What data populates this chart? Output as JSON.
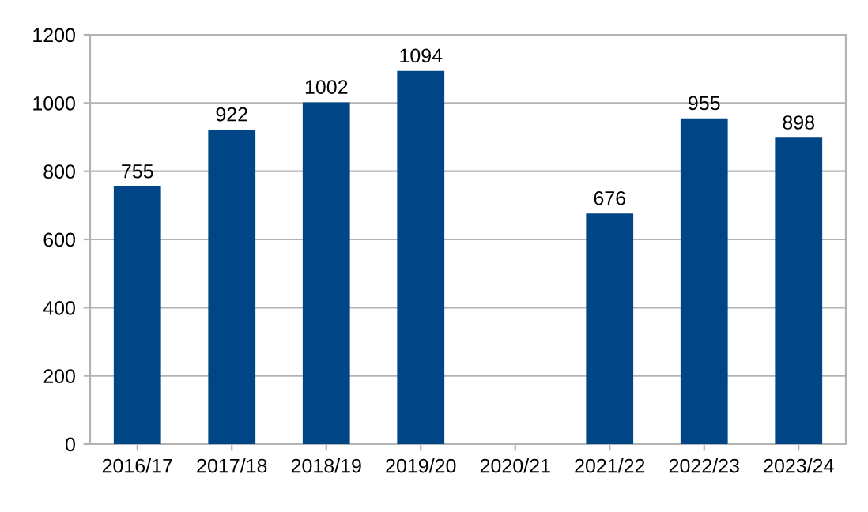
{
  "chart_data": {
    "type": "bar",
    "categories": [
      "2016/17",
      "2017/18",
      "2018/19",
      "2019/20",
      "2020/21",
      "2021/22",
      "2022/23",
      "2023/24"
    ],
    "values": [
      755,
      922,
      1002,
      1094,
      null,
      676,
      955,
      898
    ],
    "color": "#004586",
    "ylim": [
      0,
      1200
    ],
    "yticks": [
      0,
      200,
      400,
      600,
      800,
      1000,
      1200
    ],
    "grid": "y",
    "data_labels": true
  }
}
